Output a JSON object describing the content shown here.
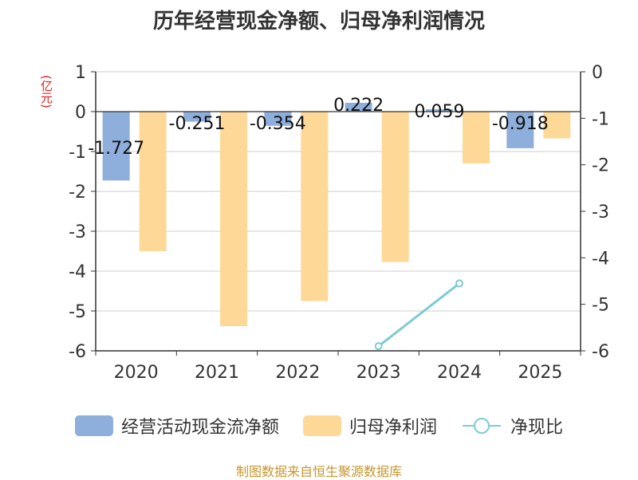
{
  "title": "历年经营现金净额、归母净利润情况",
  "unit_left": "(亿元)",
  "source": "制图数据来自恒生聚源数据库",
  "colors": {
    "cash": "#8eaedb",
    "profit": "#fed897",
    "ratio": "#7ecbd3",
    "axis": "#333333",
    "grid": "#cccccc"
  },
  "chart_data": {
    "type": "bar",
    "categories": [
      "2020",
      "2021",
      "2022",
      "2023",
      "2024",
      "2025"
    ],
    "series": [
      {
        "name": "经营活动现金流净额",
        "axis": "left",
        "values": [
          -1.727,
          -0.251,
          -0.354,
          0.222,
          0.059,
          -0.918
        ],
        "labels": [
          "-1.727",
          "-0.251",
          "-0.354",
          "0.222",
          "0.059",
          "-0.918"
        ]
      },
      {
        "name": "归母净利润",
        "axis": "left",
        "values": [
          -3.5,
          -5.38,
          -4.75,
          -3.77,
          -1.3,
          -0.67
        ]
      },
      {
        "name": "净现比",
        "type": "line",
        "axis": "right",
        "values": [
          null,
          null,
          null,
          -5.9,
          -4.55,
          null
        ]
      }
    ],
    "ylim_left": [
      -6,
      1
    ],
    "yticks_left": [
      "1",
      "0",
      "-1",
      "-2",
      "-3",
      "-4",
      "-5",
      "-6"
    ],
    "ylim_right": [
      -6,
      0
    ],
    "yticks_right": [
      "0",
      "-1",
      "-2",
      "-3",
      "-4",
      "-5",
      "-6"
    ],
    "grid": true,
    "legend_position": "bottom"
  }
}
